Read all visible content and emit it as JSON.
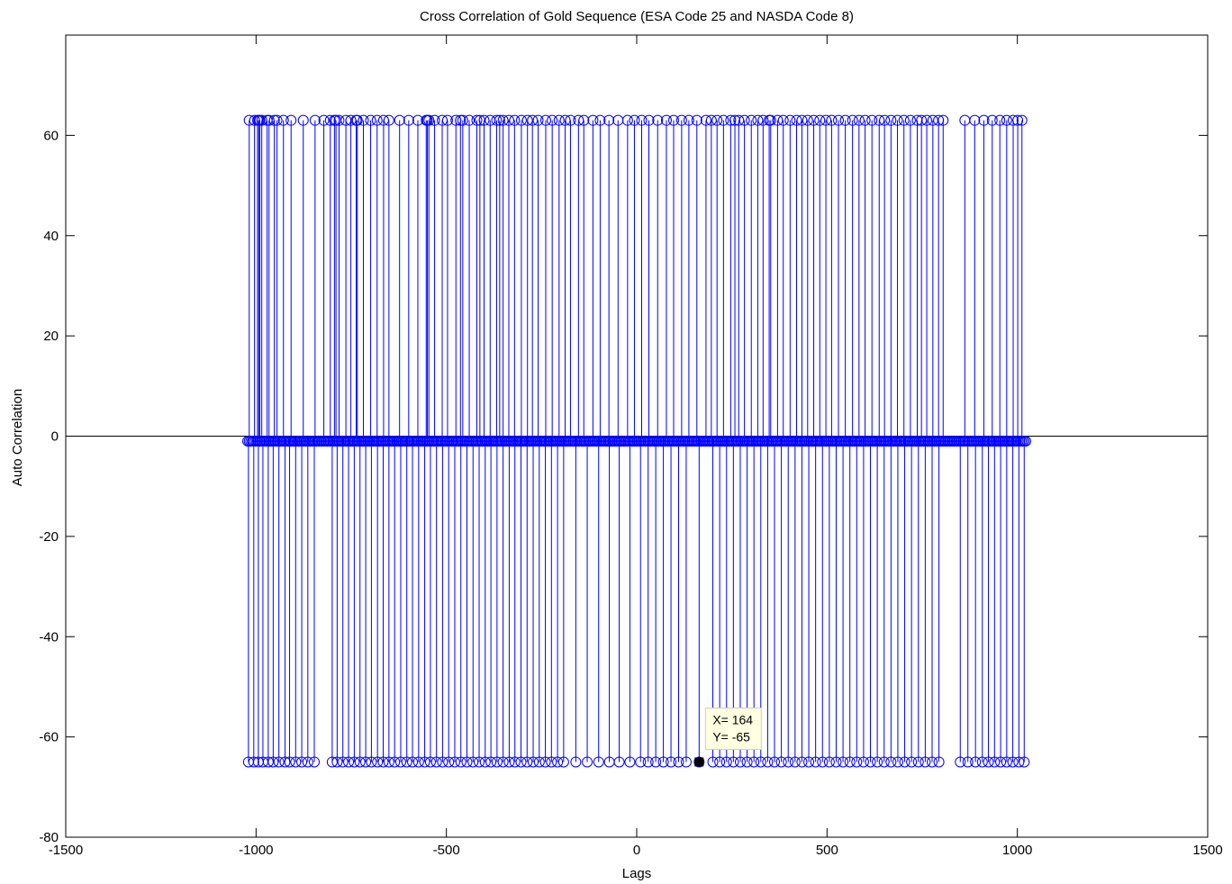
{
  "chart_data": {
    "type": "stem",
    "title": "Cross Correlation of Gold Sequence (ESA Code 25 and NASDA Code 8)",
    "xlabel": "Lags",
    "ylabel": "Auto Correlation",
    "xlim": [
      -1500,
      1500
    ],
    "ylim": [
      -80,
      80
    ],
    "xticks": [
      -1500,
      -1000,
      -500,
      0,
      500,
      1000,
      1500
    ],
    "yticks": [
      -80,
      -60,
      -40,
      -20,
      0,
      20,
      40,
      60
    ],
    "series": [
      {
        "color": "#0000ff",
        "marker": "circle",
        "lag_range": [
          -1022,
          1022
        ],
        "baseline_value": -1,
        "values_levels": [
          63,
          -1,
          -65
        ],
        "high_lags": [
          -1018,
          -1004,
          -996,
          -993,
          -990,
          -985,
          -971,
          -966,
          -952,
          -945,
          -928,
          -908,
          -876,
          -845,
          -822,
          -805,
          -794,
          -790,
          -782,
          -764,
          -751,
          -737,
          -734,
          -718,
          -699,
          -682,
          -665,
          -651,
          -623,
          -599,
          -575,
          -553,
          -550,
          -546,
          -531,
          -511,
          -497,
          -475,
          -463,
          -457,
          -440,
          -420,
          -412,
          -401,
          -385,
          -368,
          -360,
          -351,
          -336,
          -321,
          -303,
          -287,
          -274,
          -259,
          -239,
          -222,
          -204,
          -188,
          -174,
          -153,
          -139,
          -115,
          -96,
          -73,
          -49,
          -24,
          -6,
          13,
          32,
          55,
          78,
          97,
          118,
          137,
          158,
          182,
          196,
          211,
          228,
          247,
          258,
          268,
          283,
          301,
          318,
          332,
          348,
          352,
          370,
          385,
          403,
          420,
          434,
          449,
          465,
          481,
          497,
          512,
          530,
          548,
          567,
          584,
          600,
          618,
          637,
          651,
          668,
          685,
          702,
          719,
          737,
          748,
          762,
          778,
          793,
          805,
          862,
          888,
          912,
          934,
          954,
          972,
          989,
          1001,
          1012
        ],
        "low_lags": [
          -1020,
          -1006,
          -994,
          -982,
          -968,
          -955,
          -940,
          -924,
          -912,
          -896,
          -880,
          -864,
          -847,
          -800,
          -787,
          -772,
          -757,
          -742,
          -727,
          -712,
          -697,
          -681,
          -666,
          -651,
          -636,
          -620,
          -604,
          -589,
          -573,
          -557,
          -542,
          -526,
          -510,
          -494,
          -478,
          -462,
          -446,
          -430,
          -414,
          -398,
          -383,
          -367,
          -351,
          -335,
          -320,
          -304,
          -288,
          -272,
          -256,
          -240,
          -224,
          -208,
          -192,
          -160,
          -130,
          -100,
          -72,
          -46,
          -18,
          10,
          30,
          50,
          70,
          90,
          110,
          130,
          164,
          200,
          218,
          236,
          254,
          272,
          290,
          308,
          326,
          344,
          362,
          380,
          398,
          416,
          434,
          452,
          470,
          488,
          506,
          524,
          542,
          560,
          578,
          596,
          614,
          632,
          650,
          668,
          686,
          704,
          722,
          740,
          758,
          776,
          794,
          850,
          870,
          890,
          908,
          924,
          940,
          956,
          972,
          988,
          1004,
          1018
        ]
      }
    ],
    "datatip": {
      "x": 164,
      "y": -65,
      "line1": "X= 164",
      "line2": "Y= -65"
    },
    "zero_line": true,
    "grid": false,
    "legend": "none"
  }
}
